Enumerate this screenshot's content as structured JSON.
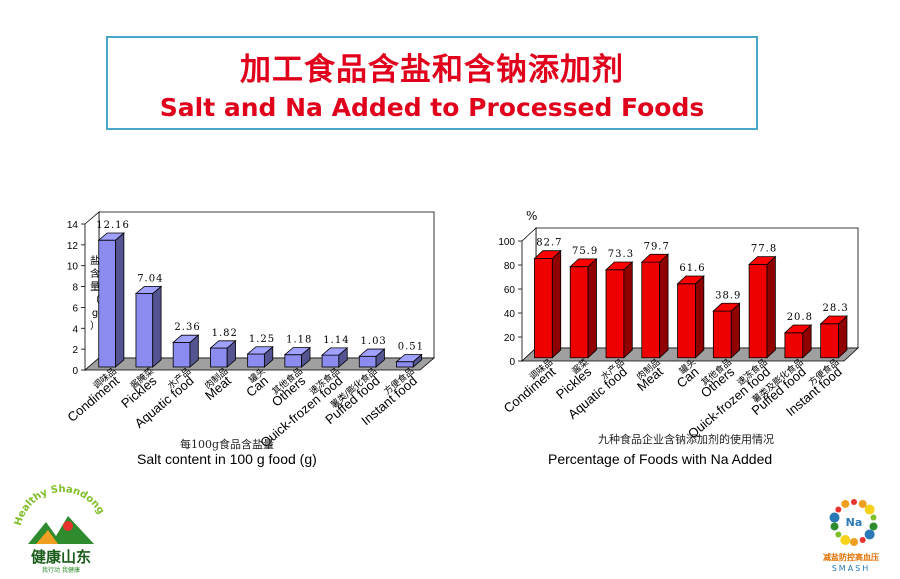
{
  "header": {
    "title_zh": "加工食品含盐和含钠添加剂",
    "title_en": "Salt and Na Added to Processed Foods"
  },
  "chart_data": [
    {
      "type": "bar",
      "title_zh": "每100g食品含盐量",
      "caption": "Salt content  in 100 g food (g)",
      "ylabel_zh": "盐含量（g）",
      "ylim": [
        0,
        14
      ],
      "yticks": [
        0,
        2,
        4,
        6,
        8,
        10,
        12,
        14
      ],
      "categories": [
        {
          "zh": "调味品",
          "en": "Condiment"
        },
        {
          "zh": "酱腌菜",
          "en": "Pickles"
        },
        {
          "zh": "水产品",
          "en": "Aquatic food"
        },
        {
          "zh": "肉制品",
          "en": "Meat"
        },
        {
          "zh": "罐头",
          "en": "Can"
        },
        {
          "zh": "其他食品",
          "en": "Others"
        },
        {
          "zh": "速冻食品",
          "en": "Quick-frozen food"
        },
        {
          "zh": "薯类/膨化食品",
          "en": "Puffed food"
        },
        {
          "zh": "方便食品",
          "en": "Instant food"
        }
      ],
      "values": [
        12.16,
        7.04,
        2.36,
        1.82,
        1.25,
        1.18,
        1.14,
        1.03,
        0.51
      ],
      "value_labels": [
        "12.16",
        "7.04",
        "2.36",
        "1.82",
        "1.25",
        "1.18",
        "1.14",
        "1.03",
        "0.51"
      ],
      "color": "#8c8cf0"
    },
    {
      "type": "bar",
      "title_zh": "九种食品企业含钠添加剂的使用情况",
      "caption": "Percentage of Foods with Na Added",
      "ylabel": "%",
      "ylim": [
        0,
        100
      ],
      "yticks": [
        0,
        20,
        40,
        60,
        80,
        100
      ],
      "categories": [
        {
          "zh": "调味品",
          "en": "Condiment"
        },
        {
          "zh": "酱菜",
          "en": "Pickles"
        },
        {
          "zh": "水产品",
          "en": "Aquatic food"
        },
        {
          "zh": "肉制品",
          "en": "Meat"
        },
        {
          "zh": "罐头",
          "en": "Can"
        },
        {
          "zh": "其他食品",
          "en": "Others"
        },
        {
          "zh": "速冻食品",
          "en": "Quick-frozen food"
        },
        {
          "zh": "薯类及膨化食品",
          "en": "Puffed food"
        },
        {
          "zh": "方便食品",
          "en": "Instant food"
        }
      ],
      "values": [
        82.7,
        75.9,
        73.3,
        79.7,
        61.6,
        38.9,
        77.8,
        20.8,
        28.3
      ],
      "value_labels": [
        "82.7",
        "75.9",
        "73.3",
        "79.7",
        "61.6",
        "38.9",
        "77.8",
        "20.8",
        "28.3"
      ],
      "color": "#ee0000"
    }
  ],
  "logos": {
    "left_text": "健康山东",
    "left_arc": "Healthy Shandong",
    "left_sub": "我行动 我健康",
    "right_badge": "Na",
    "right_text": "减盐防控高血压",
    "right_sub": "SMASH"
  }
}
